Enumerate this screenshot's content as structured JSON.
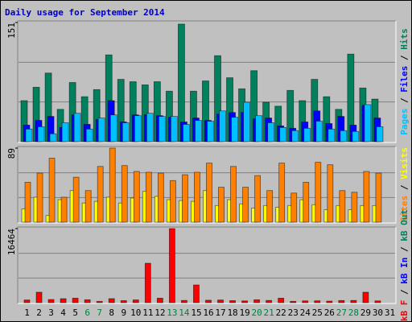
{
  "title": "Daily usage for September 2014",
  "chart_data": [
    {
      "type": "bar",
      "ylim": [
        0,
        151
      ],
      "yticks": [
        151
      ],
      "series": [
        {
          "name": "Hits",
          "color": "#00805c",
          "values": [
            52,
            69,
            87,
            41,
            75,
            57,
            66,
            110,
            79,
            76,
            72,
            76,
            64,
            149,
            64,
            77,
            109,
            81,
            67,
            90,
            50,
            45,
            65,
            52,
            79,
            57,
            41,
            111,
            68,
            54,
            null
          ]
        },
        {
          "name": "Files",
          "color": "#0000ff",
          "values": [
            21,
            27,
            32,
            18,
            34,
            22,
            28,
            52,
            25,
            34,
            34,
            33,
            31,
            25,
            30,
            27,
            35,
            37,
            37,
            29,
            30,
            20,
            17,
            25,
            39,
            23,
            32,
            21,
            46,
            30,
            null
          ]
        },
        {
          "name": "Pages",
          "color": "#00c0ff",
          "values": [
            16,
            19,
            10,
            24,
            36,
            16,
            30,
            34,
            24,
            33,
            36,
            32,
            32,
            22,
            27,
            26,
            39,
            31,
            50,
            33,
            24,
            18,
            14,
            17,
            26,
            16,
            14,
            13,
            47,
            19,
            null
          ]
        }
      ]
    },
    {
      "type": "bar",
      "ylim": [
        0,
        89
      ],
      "yticks": [
        89
      ],
      "series": [
        {
          "name": "Visits",
          "color": "#ffff00",
          "values": [
            16,
            30,
            8,
            27,
            38,
            23,
            25,
            30,
            23,
            29,
            37,
            31,
            27,
            26,
            25,
            38,
            20,
            27,
            22,
            17,
            20,
            18,
            20,
            27,
            21,
            15,
            20,
            15,
            20,
            20,
            null
          ]
        },
        {
          "name": "Sites",
          "color": "#ff8000",
          "values": [
            48,
            59,
            77,
            30,
            54,
            38,
            67,
            89,
            68,
            61,
            60,
            59,
            50,
            57,
            60,
            71,
            42,
            67,
            42,
            56,
            38,
            71,
            35,
            48,
            72,
            69,
            38,
            36,
            61,
            59,
            null
          ]
        }
      ]
    },
    {
      "type": "bar",
      "ylim": [
        0,
        16464
      ],
      "yticks": [
        16464
      ],
      "categories": [
        "1",
        "2",
        "3",
        "4",
        "5",
        "6",
        "7",
        "8",
        "9",
        "10",
        "11",
        "12",
        "13",
        "14",
        "15",
        "16",
        "17",
        "18",
        "19",
        "20",
        "21",
        "22",
        "23",
        "24",
        "25",
        "26",
        "27",
        "28",
        "29",
        "30",
        "31"
      ],
      "highlight_color": "#008040",
      "highlight_categories": [
        "6",
        "7",
        "13",
        "14",
        "20",
        "21",
        "27",
        "28"
      ],
      "series": [
        {
          "name": "kB Out",
          "color": "#00805c"
        },
        {
          "name": "kB In",
          "color": "#0000ff"
        },
        {
          "name": "kB F",
          "color": "#ff0000",
          "values": [
            600,
            2330,
            700,
            890,
            1000,
            650,
            300,
            900,
            450,
            620,
            8770,
            1000,
            16464,
            500,
            3940,
            550,
            600,
            450,
            400,
            650,
            500,
            1000,
            300,
            400,
            420,
            350,
            480,
            500,
            2330,
            400,
            null
          ]
        }
      ]
    }
  ]
}
